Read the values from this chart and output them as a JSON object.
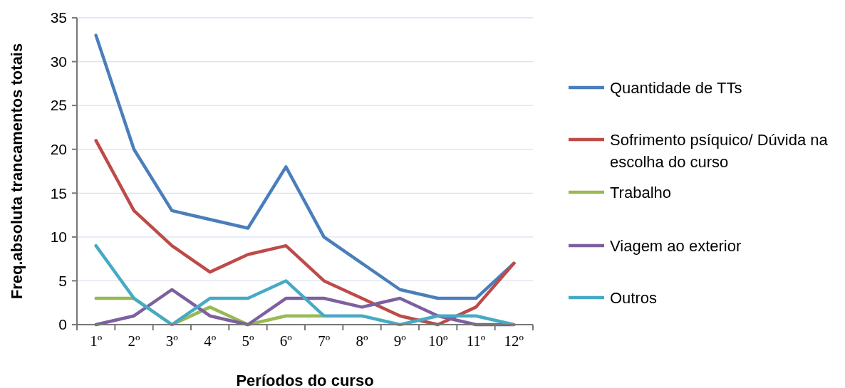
{
  "chart_data": {
    "type": "line",
    "xlabel": "Períodos do curso",
    "ylabel": "Freq.absoluta trancamentos totais",
    "categories": [
      "1º",
      "2º",
      "3º",
      "4º",
      "5º",
      "6º",
      "7º",
      "8º",
      "9º",
      "10º",
      "11º",
      "12º"
    ],
    "series": [
      {
        "name": "Quantidade de TTs",
        "color": "#4a7ebb",
        "values": [
          33,
          20,
          13,
          12,
          11,
          18,
          10,
          7,
          4,
          3,
          3,
          7
        ]
      },
      {
        "name": "Sofrimento psíquico/ Dúvida na escolha do curso",
        "color": "#be4b48",
        "values": [
          21,
          13,
          9,
          6,
          8,
          9,
          5,
          3,
          1,
          0,
          2,
          7
        ]
      },
      {
        "name": "Trabalho",
        "color": "#98b954",
        "values": [
          3,
          3,
          0,
          2,
          0,
          1,
          1,
          null,
          null,
          null,
          null,
          null
        ]
      },
      {
        "name": "Viagem ao exterior",
        "color": "#7d60a0",
        "values": [
          0,
          1,
          4,
          1,
          0,
          3,
          3,
          2,
          3,
          1,
          0,
          0
        ]
      },
      {
        "name": "Outros",
        "color": "#46aac5",
        "values": [
          9,
          3,
          0,
          3,
          3,
          5,
          1,
          1,
          0,
          1,
          1,
          0
        ]
      }
    ],
    "ylim": [
      0,
      35
    ],
    "yticks": [
      0,
      5,
      10,
      15,
      20,
      25,
      30,
      35
    ],
    "grid": "y",
    "legend": "right",
    "marker": "none",
    "line_style": "solid"
  }
}
